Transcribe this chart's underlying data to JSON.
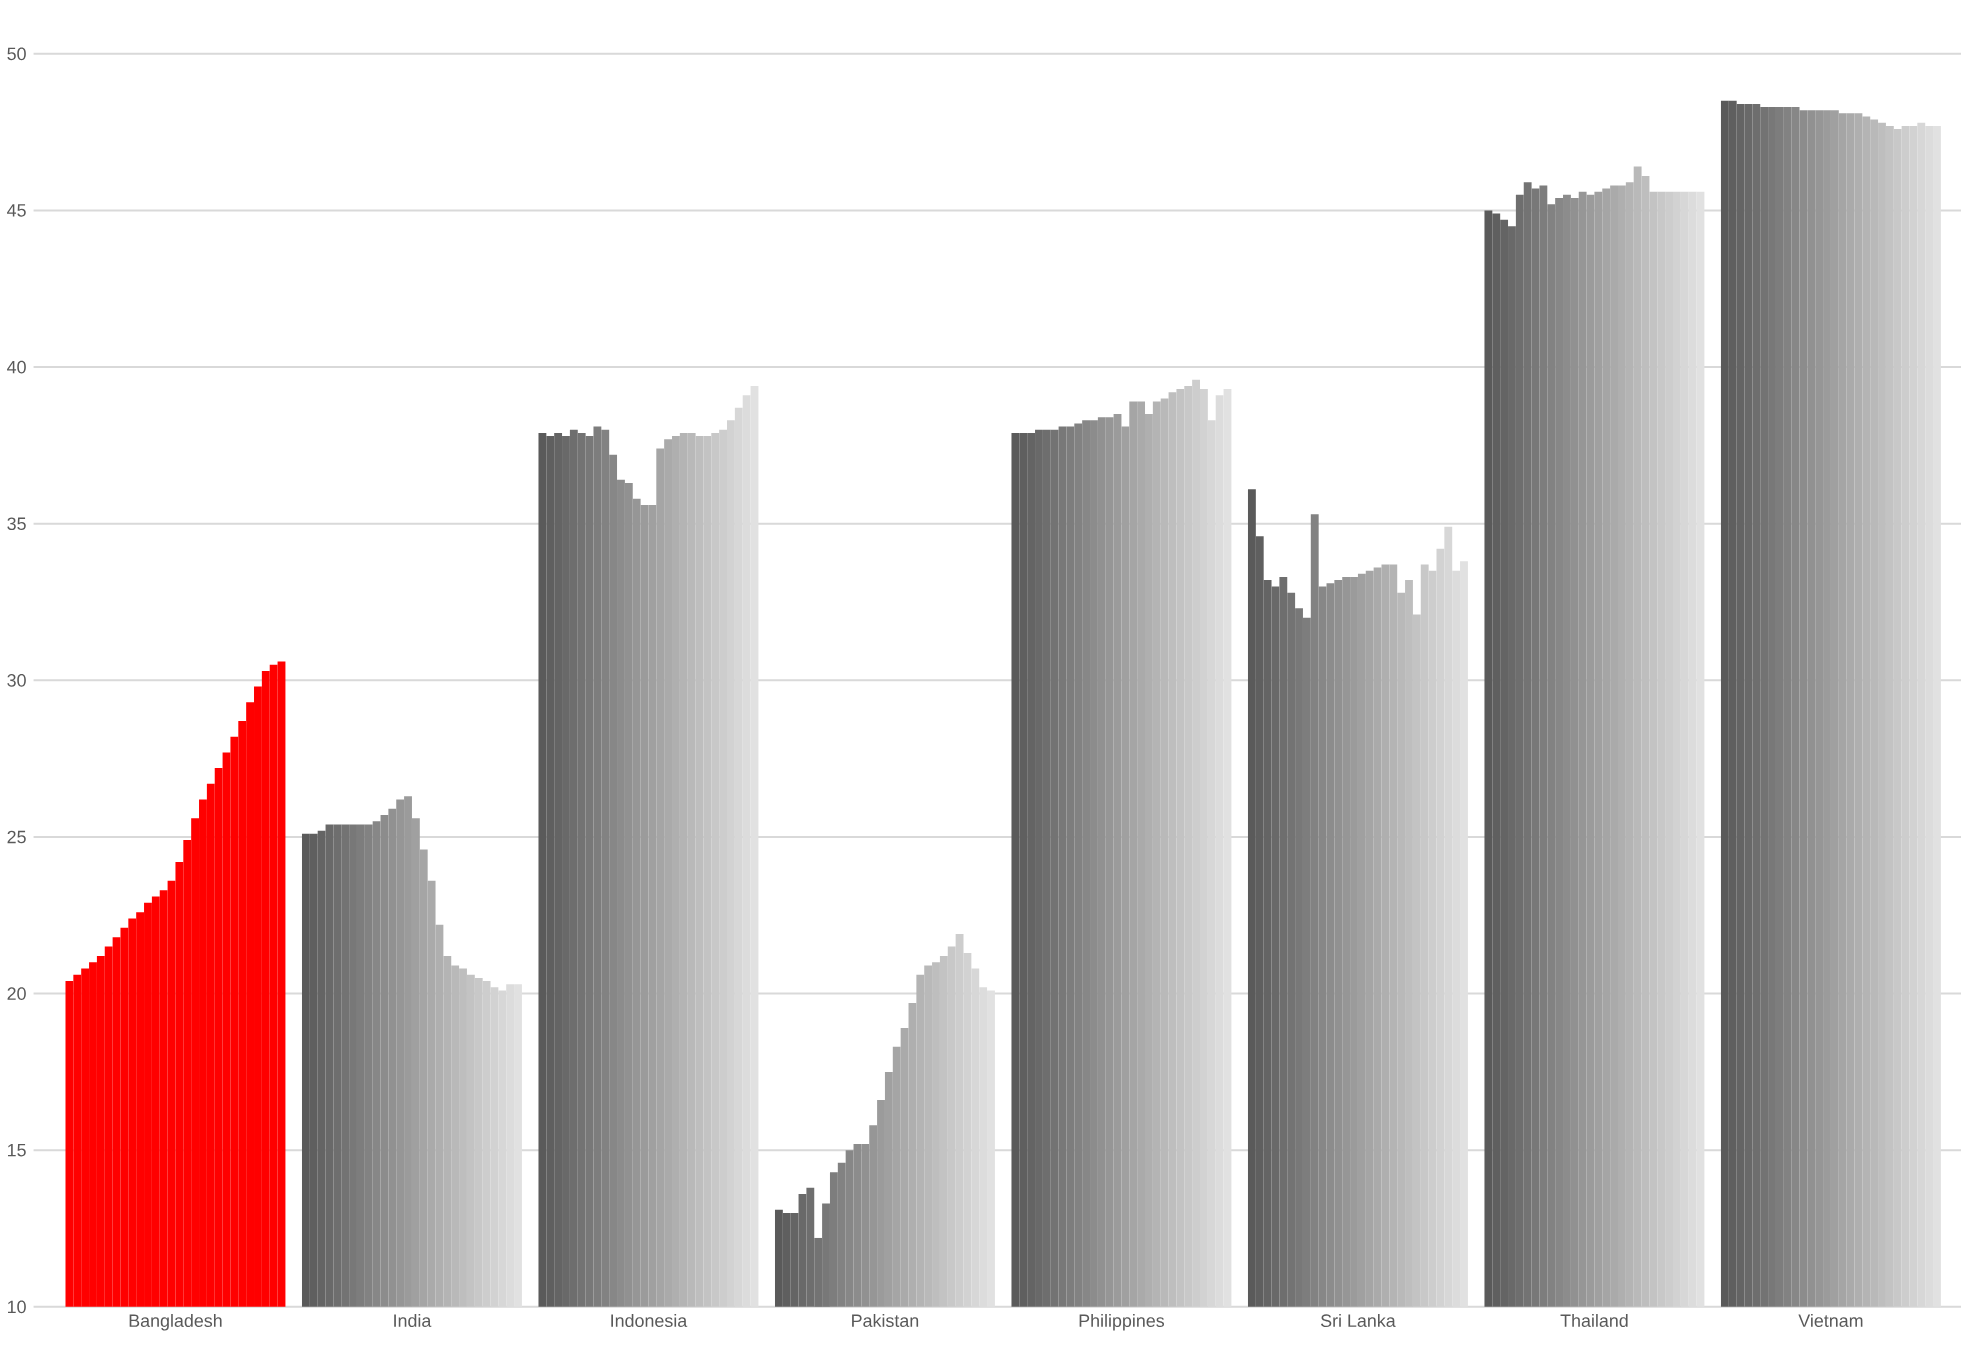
{
  "chart_data": {
    "type": "bar",
    "categories": [
      "Bangladesh",
      "India",
      "Indonesia",
      "Pakistan",
      "Philippines",
      "Sri Lanka",
      "Thailand",
      "Vietnam"
    ],
    "ylim": [
      10,
      50
    ],
    "yticks": [
      10,
      15,
      20,
      25,
      30,
      35,
      40,
      45,
      50
    ],
    "grid": "y",
    "series": [
      {
        "colors": [
          "#ff0000",
          "#5a5a5a",
          "#5a5a5a",
          "#5a5a5a",
          "#5a5a5a",
          "#5a5a5a",
          "#5a5a5a",
          "#5a5a5a"
        ],
        "values": [
          20.4,
          25.1,
          37.9,
          13.1,
          37.9,
          36.1,
          45.0,
          48.5
        ]
      },
      {
        "colors": [
          "#ff0000",
          "#5f5f5f",
          "#5f5f5f",
          "#5f5f5f",
          "#5f5f5f",
          "#5f5f5f",
          "#5f5f5f",
          "#5f5f5f"
        ],
        "values": [
          20.6,
          25.1,
          37.8,
          13.0,
          37.9,
          34.6,
          44.9,
          48.5
        ]
      },
      {
        "colors": [
          "#ff0000",
          "#646464",
          "#646464",
          "#646464",
          "#646464",
          "#646464",
          "#646464",
          "#646464"
        ],
        "values": [
          20.8,
          25.2,
          37.9,
          13.0,
          37.9,
          33.2,
          44.7,
          48.4
        ]
      },
      {
        "colors": [
          "#ff0000",
          "#696969",
          "#696969",
          "#696969",
          "#696969",
          "#696969",
          "#696969",
          "#696969"
        ],
        "values": [
          21.0,
          25.4,
          37.8,
          13.6,
          38.0,
          33.0,
          44.5,
          48.4
        ]
      },
      {
        "colors": [
          "#ff0000",
          "#6e6e6e",
          "#6e6e6e",
          "#6e6e6e",
          "#6e6e6e",
          "#6e6e6e",
          "#6e6e6e",
          "#6e6e6e"
        ],
        "values": [
          21.2,
          25.4,
          38.0,
          13.8,
          38.0,
          33.3,
          45.5,
          48.4
        ]
      },
      {
        "colors": [
          "#ff0000",
          "#737373",
          "#737373",
          "#737373",
          "#737373",
          "#737373",
          "#737373",
          "#737373"
        ],
        "values": [
          21.5,
          25.4,
          37.9,
          12.2,
          38.0,
          32.8,
          45.9,
          48.3
        ]
      },
      {
        "colors": [
          "#ff0000",
          "#787878",
          "#787878",
          "#787878",
          "#787878",
          "#787878",
          "#787878",
          "#787878"
        ],
        "values": [
          21.8,
          25.4,
          37.8,
          13.3,
          38.1,
          32.3,
          45.7,
          48.3
        ]
      },
      {
        "colors": [
          "#ff0000",
          "#7d7d7d",
          "#7d7d7d",
          "#7d7d7d",
          "#7d7d7d",
          "#7d7d7d",
          "#7d7d7d",
          "#7d7d7d"
        ],
        "values": [
          22.1,
          25.4,
          38.1,
          14.3,
          38.1,
          32.0,
          45.8,
          48.3
        ]
      },
      {
        "colors": [
          "#ff0000",
          "#828282",
          "#828282",
          "#828282",
          "#828282",
          "#828282",
          "#828282",
          "#828282"
        ],
        "values": [
          22.4,
          25.4,
          38.0,
          14.6,
          38.2,
          35.3,
          45.2,
          48.3
        ]
      },
      {
        "colors": [
          "#ff0000",
          "#878787",
          "#878787",
          "#878787",
          "#878787",
          "#878787",
          "#878787",
          "#878787"
        ],
        "values": [
          22.6,
          25.5,
          37.2,
          15.0,
          38.3,
          33.0,
          45.4,
          48.3
        ]
      },
      {
        "colors": [
          "#ff0000",
          "#8c8c8c",
          "#8c8c8c",
          "#8c8c8c",
          "#8c8c8c",
          "#8c8c8c",
          "#8c8c8c",
          "#8c8c8c"
        ],
        "values": [
          22.9,
          25.7,
          36.4,
          15.2,
          38.3,
          33.1,
          45.5,
          48.2
        ]
      },
      {
        "colors": [
          "#ff0000",
          "#919191",
          "#919191",
          "#919191",
          "#919191",
          "#919191",
          "#919191",
          "#919191"
        ],
        "values": [
          23.1,
          25.9,
          36.3,
          15.2,
          38.4,
          33.2,
          45.4,
          48.2
        ]
      },
      {
        "colors": [
          "#ff0000",
          "#969696",
          "#969696",
          "#969696",
          "#969696",
          "#969696",
          "#969696",
          "#969696"
        ],
        "values": [
          23.3,
          26.2,
          35.8,
          15.8,
          38.4,
          33.3,
          45.6,
          48.2
        ]
      },
      {
        "colors": [
          "#ff0000",
          "#9b9b9b",
          "#9b9b9b",
          "#9b9b9b",
          "#9b9b9b",
          "#9b9b9b",
          "#9b9b9b",
          "#9b9b9b"
        ],
        "values": [
          23.6,
          26.3,
          35.6,
          16.6,
          38.5,
          33.3,
          45.5,
          48.2
        ]
      },
      {
        "colors": [
          "#ff0000",
          "#a0a0a0",
          "#a0a0a0",
          "#a0a0a0",
          "#a0a0a0",
          "#a0a0a0",
          "#a0a0a0",
          "#a0a0a0"
        ],
        "values": [
          24.2,
          25.6,
          35.6,
          17.5,
          38.1,
          33.4,
          45.6,
          48.2
        ]
      },
      {
        "colors": [
          "#ff0000",
          "#a5a5a5",
          "#a5a5a5",
          "#a5a5a5",
          "#a5a5a5",
          "#a5a5a5",
          "#a5a5a5",
          "#a5a5a5"
        ],
        "values": [
          24.9,
          24.6,
          37.4,
          18.3,
          38.9,
          33.5,
          45.7,
          48.1
        ]
      },
      {
        "colors": [
          "#ff0000",
          "#aaaaaa",
          "#aaaaaa",
          "#aaaaaa",
          "#aaaaaa",
          "#aaaaaa",
          "#aaaaaa",
          "#aaaaaa"
        ],
        "values": [
          25.6,
          23.6,
          37.7,
          18.9,
          38.9,
          33.6,
          45.8,
          48.1
        ]
      },
      {
        "colors": [
          "#ff0000",
          "#afafaf",
          "#afafaf",
          "#afafaf",
          "#afafaf",
          "#afafaf",
          "#afafaf",
          "#afafaf"
        ],
        "values": [
          26.2,
          22.2,
          37.8,
          19.7,
          38.5,
          33.7,
          45.8,
          48.1
        ]
      },
      {
        "colors": [
          "#ff0000",
          "#b4b4b4",
          "#b4b4b4",
          "#b4b4b4",
          "#b4b4b4",
          "#b4b4b4",
          "#b4b4b4",
          "#b4b4b4"
        ],
        "values": [
          26.7,
          21.2,
          37.9,
          20.6,
          38.9,
          33.7,
          45.9,
          48.0
        ]
      },
      {
        "colors": [
          "#ff0000",
          "#b9b9b9",
          "#b9b9b9",
          "#b9b9b9",
          "#b9b9b9",
          "#b9b9b9",
          "#b9b9b9",
          "#b9b9b9"
        ],
        "values": [
          27.2,
          20.9,
          37.9,
          20.9,
          39.0,
          32.8,
          46.4,
          47.9
        ]
      },
      {
        "colors": [
          "#ff0000",
          "#bebebe",
          "#bebebe",
          "#bebebe",
          "#bebebe",
          "#bebebe",
          "#bebebe",
          "#bebebe"
        ],
        "values": [
          27.7,
          20.8,
          37.8,
          21.0,
          39.2,
          33.2,
          46.1,
          47.8
        ]
      },
      {
        "colors": [
          "#ff0000",
          "#c3c3c3",
          "#c3c3c3",
          "#c3c3c3",
          "#c3c3c3",
          "#c3c3c3",
          "#c3c3c3",
          "#c3c3c3"
        ],
        "values": [
          28.2,
          20.6,
          37.8,
          21.2,
          39.3,
          32.1,
          45.6,
          47.7
        ]
      },
      {
        "colors": [
          "#ff0000",
          "#c8c8c8",
          "#c8c8c8",
          "#c8c8c8",
          "#c8c8c8",
          "#c8c8c8",
          "#c8c8c8",
          "#c8c8c8"
        ],
        "values": [
          28.7,
          20.5,
          37.9,
          21.5,
          39.4,
          33.7,
          45.6,
          47.6
        ]
      },
      {
        "colors": [
          "#ff0000",
          "#cdcdcd",
          "#cdcdcd",
          "#cdcdcd",
          "#cdcdcd",
          "#cdcdcd",
          "#cdcdcd",
          "#cdcdcd"
        ],
        "values": [
          29.3,
          20.4,
          38.0,
          21.9,
          39.6,
          33.5,
          45.6,
          47.7
        ]
      },
      {
        "colors": [
          "#ff0000",
          "#d2d2d2",
          "#d2d2d2",
          "#d2d2d2",
          "#d2d2d2",
          "#d2d2d2",
          "#d2d2d2",
          "#d2d2d2"
        ],
        "values": [
          29.8,
          20.2,
          38.3,
          21.3,
          39.3,
          34.2,
          45.6,
          47.7
        ]
      },
      {
        "colors": [
          "#ff0000",
          "#d7d7d7",
          "#d7d7d7",
          "#d7d7d7",
          "#d7d7d7",
          "#d7d7d7",
          "#d7d7d7",
          "#d7d7d7"
        ],
        "values": [
          30.3,
          20.1,
          38.7,
          20.8,
          38.3,
          34.9,
          45.6,
          47.8
        ]
      },
      {
        "colors": [
          "#ff0000",
          "#dcdcdc",
          "#dcdcdc",
          "#dcdcdc",
          "#dcdcdc",
          "#dcdcdc",
          "#dcdcdc",
          "#dcdcdc"
        ],
        "values": [
          30.5,
          20.3,
          39.1,
          20.2,
          39.1,
          33.5,
          45.6,
          47.7
        ]
      },
      {
        "colors": [
          "#ff0000",
          "#e1e1e1",
          "#e1e1e1",
          "#e1e1e1",
          "#e1e1e1",
          "#e1e1e1",
          "#e1e1e1",
          "#e1e1e1"
        ],
        "values": [
          30.6,
          20.3,
          39.4,
          20.1,
          39.3,
          33.8,
          45.6,
          47.7
        ]
      }
    ]
  }
}
